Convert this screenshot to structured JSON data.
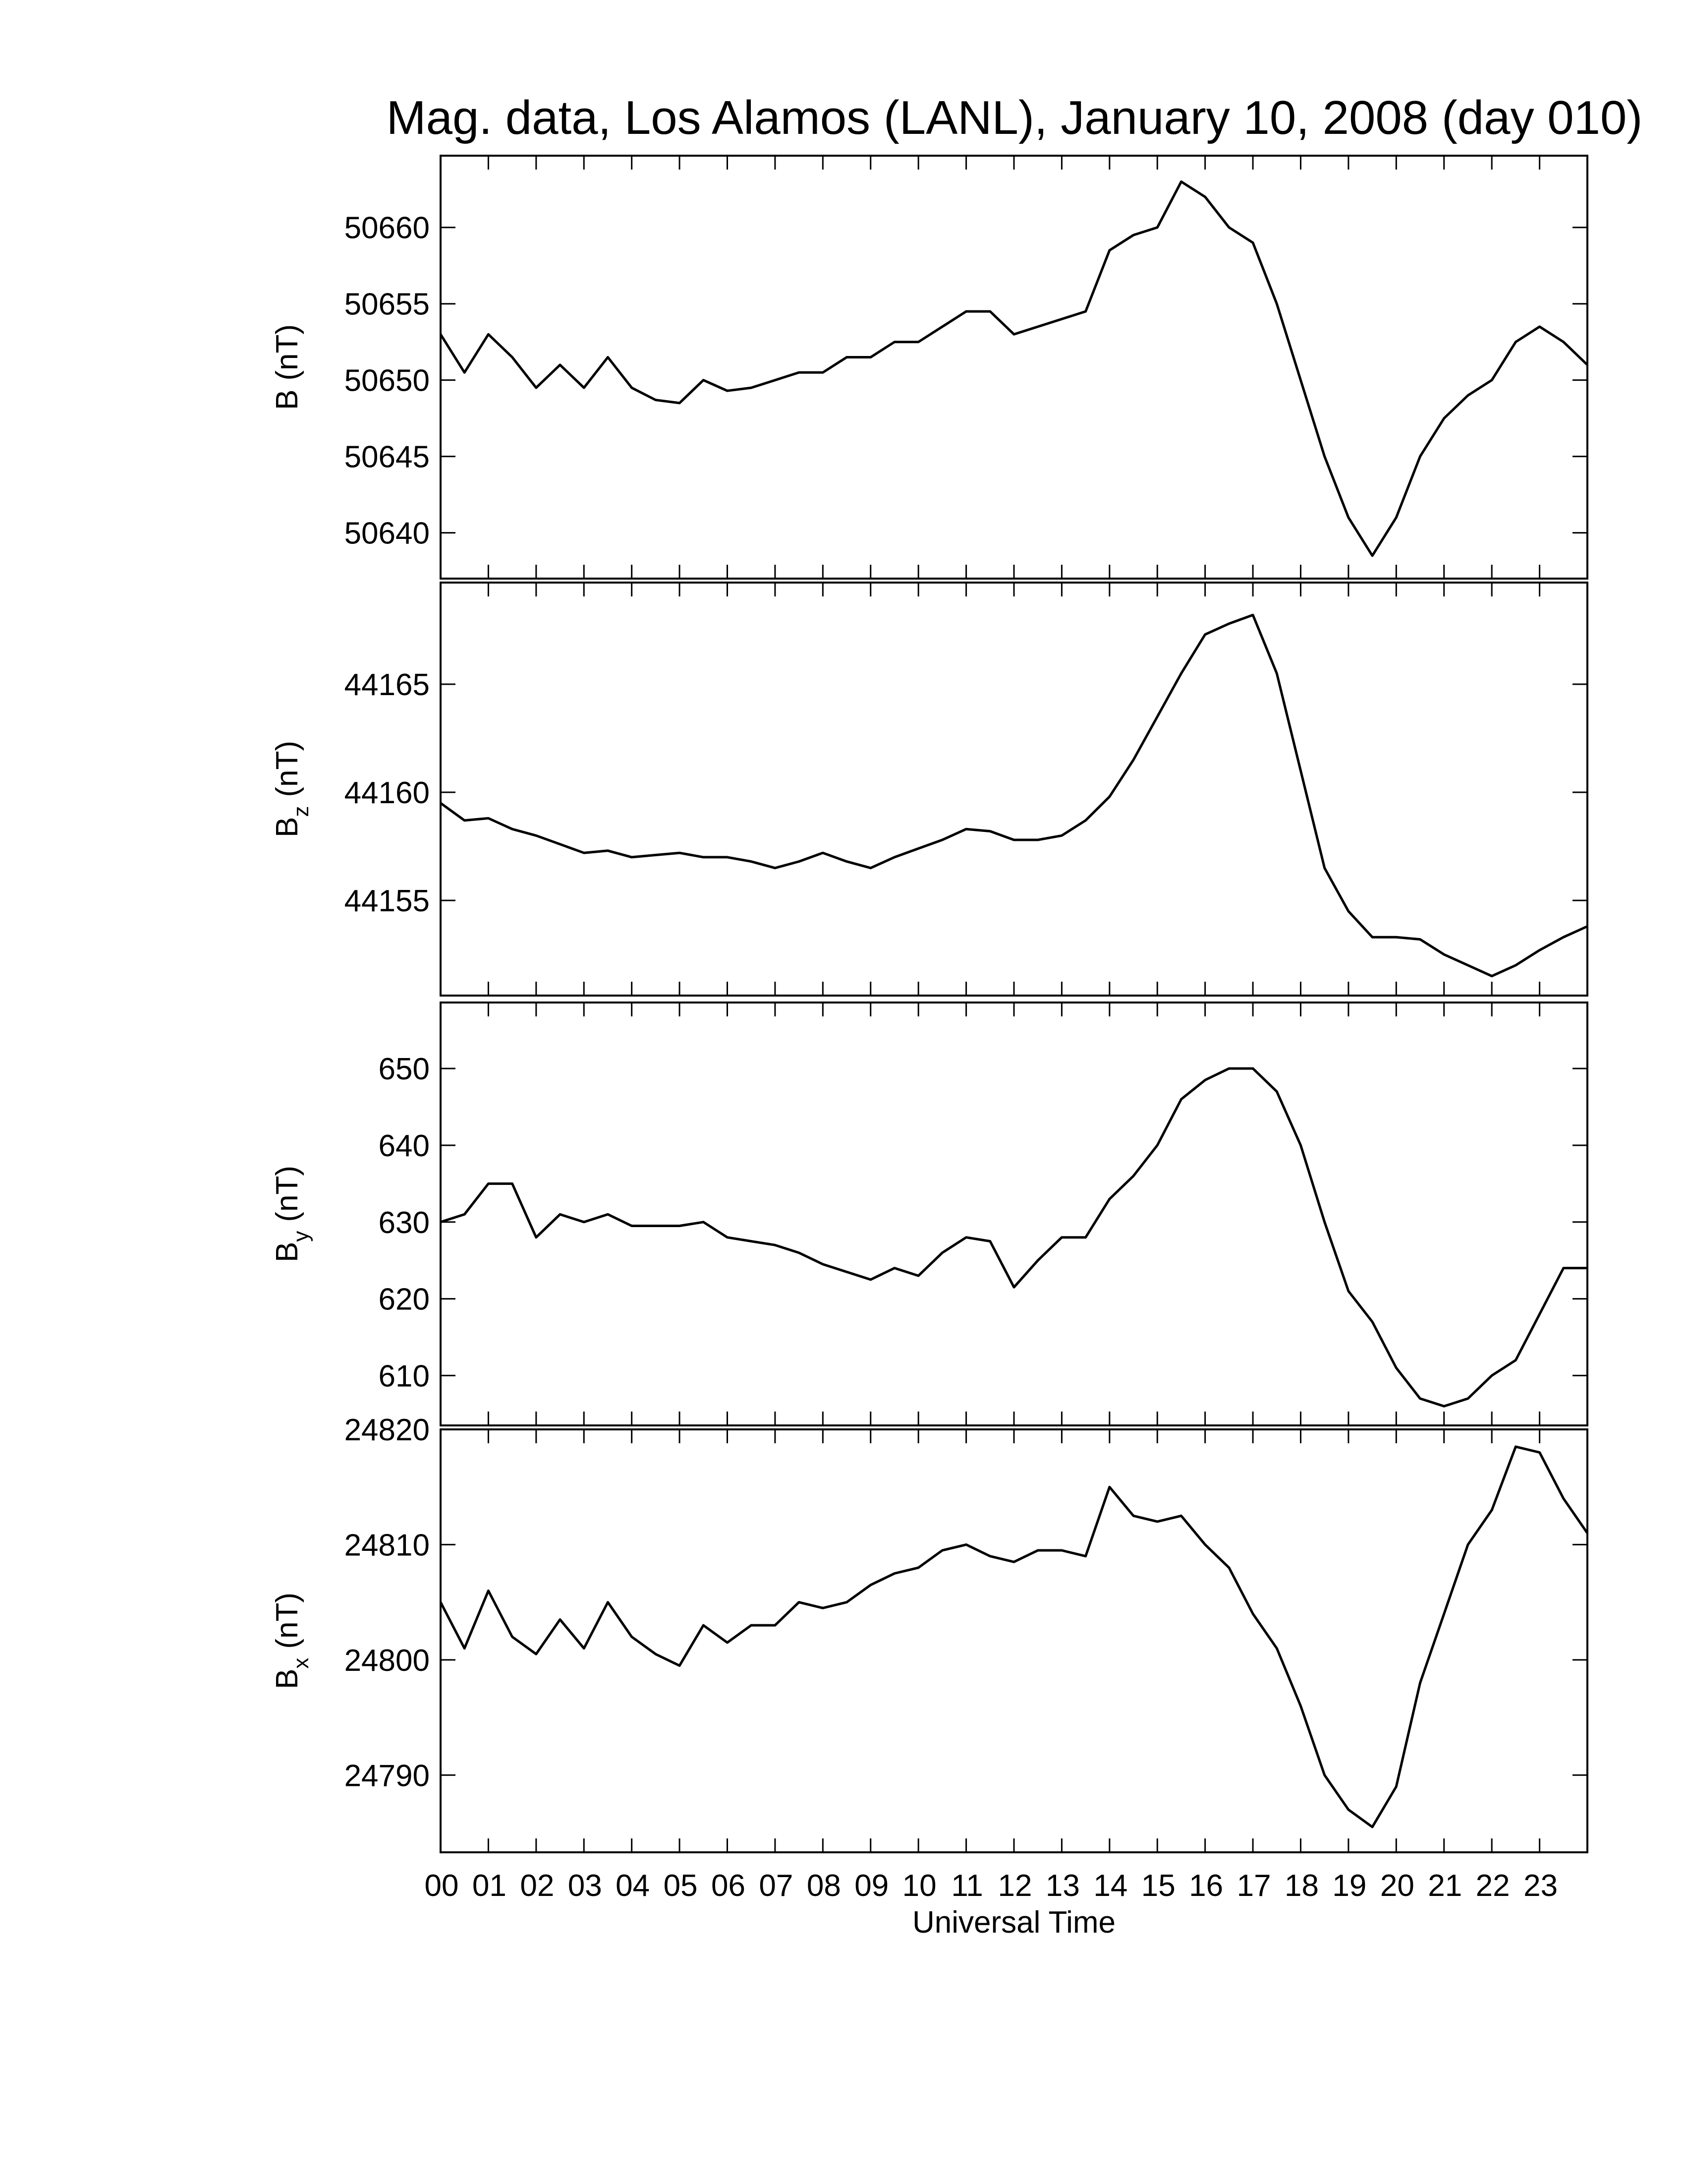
{
  "chart_data": [
    {
      "type": "line",
      "title": "Mag. data, Los Alamos (LANL), January 10, 2008 (day 010)",
      "ylabel": "B",
      "ylabel_unit": "(nT)",
      "xlim": [
        0,
        24
      ],
      "xticks": [
        0,
        1,
        2,
        3,
        4,
        5,
        6,
        7,
        8,
        9,
        10,
        11,
        12,
        13,
        14,
        15,
        16,
        17,
        18,
        19,
        20,
        21,
        22,
        23
      ],
      "ylim": [
        50637,
        50664.7
      ],
      "yticks": [
        50640,
        50645,
        50650,
        50655,
        50660
      ],
      "x": [
        0,
        0.5,
        1,
        1.5,
        2,
        2.5,
        3,
        3.5,
        4,
        4.5,
        5,
        5.5,
        6,
        6.5,
        7,
        7.5,
        8,
        8.5,
        9,
        9.5,
        10,
        10.5,
        11,
        11.5,
        12,
        12.5,
        13,
        13.5,
        14,
        14.5,
        15,
        15.5,
        16,
        16.5,
        17,
        17.5,
        18,
        18.5,
        19,
        19.5,
        20,
        20.5,
        21,
        21.5,
        22,
        22.5,
        23,
        23.5,
        24
      ],
      "series": [
        {
          "color": "#000000",
          "values": [
            50653,
            50650.5,
            50653,
            50651.5,
            50649.5,
            50651,
            50649.5,
            50651.5,
            50649.5,
            50648.7,
            50648.5,
            50650,
            50649.3,
            50649.5,
            50650,
            50650.5,
            50650.5,
            50651.5,
            50651.5,
            50652.5,
            50652.5,
            50653.5,
            50654.5,
            50654.5,
            50653,
            50653.5,
            50654,
            50654.5,
            50658.5,
            50659.5,
            50660,
            50663,
            50662,
            50660,
            50659,
            50655,
            50650,
            50645,
            50641,
            50638.5,
            50641,
            50645,
            50647.5,
            50649,
            50650,
            50652.5,
            50653.5,
            50652.5,
            50651
          ]
        }
      ]
    },
    {
      "type": "line",
      "ylabel": "B",
      "ylabel_subscript": "z",
      "ylabel_unit": "(nT)",
      "xlim": [
        0,
        24
      ],
      "xticks": [
        0,
        1,
        2,
        3,
        4,
        5,
        6,
        7,
        8,
        9,
        10,
        11,
        12,
        13,
        14,
        15,
        16,
        17,
        18,
        19,
        20,
        21,
        22,
        23
      ],
      "ylim": [
        44150.6,
        44169.7
      ],
      "yticks": [
        44155,
        44160,
        44165
      ],
      "x": [
        0,
        0.5,
        1,
        1.5,
        2,
        2.5,
        3,
        3.5,
        4,
        4.5,
        5,
        5.5,
        6,
        6.5,
        7,
        7.5,
        8,
        8.5,
        9,
        9.5,
        10,
        10.5,
        11,
        11.5,
        12,
        12.5,
        13,
        13.5,
        14,
        14.5,
        15,
        15.5,
        16,
        16.5,
        17,
        17.5,
        18,
        18.5,
        19,
        19.5,
        20,
        20.5,
        21,
        21.5,
        22,
        22.5,
        23,
        23.5,
        24
      ],
      "series": [
        {
          "color": "#000000",
          "values": [
            44159.5,
            44158.7,
            44158.8,
            44158.3,
            44158,
            44157.6,
            44157.2,
            44157.3,
            44157,
            44157.1,
            44157.2,
            44157,
            44157,
            44156.8,
            44156.5,
            44156.8,
            44157.2,
            44156.8,
            44156.5,
            44157,
            44157.4,
            44157.8,
            44158.3,
            44158.2,
            44157.8,
            44157.8,
            44158,
            44158.7,
            44159.8,
            44161.5,
            44163.5,
            44165.5,
            44167.3,
            44167.8,
            44168.2,
            44165.5,
            44161,
            44156.5,
            44154.5,
            44153.3,
            44153.3,
            44153.2,
            44152.5,
            44152,
            44151.5,
            44152,
            44152.7,
            44153.3,
            44153.8
          ]
        }
      ]
    },
    {
      "type": "line",
      "ylabel": "B",
      "ylabel_subscript": "y",
      "ylabel_unit": "(nT)",
      "xlim": [
        0,
        24
      ],
      "xticks": [
        0,
        1,
        2,
        3,
        4,
        5,
        6,
        7,
        8,
        9,
        10,
        11,
        12,
        13,
        14,
        15,
        16,
        17,
        18,
        19,
        20,
        21,
        22,
        23
      ],
      "ylim": [
        603.5,
        658.6
      ],
      "yticks": [
        610,
        620,
        630,
        640,
        650
      ],
      "x": [
        0,
        0.5,
        1,
        1.5,
        2,
        2.5,
        3,
        3.5,
        4,
        4.5,
        5,
        5.5,
        6,
        6.5,
        7,
        7.5,
        8,
        8.5,
        9,
        9.5,
        10,
        10.5,
        11,
        11.5,
        12,
        12.5,
        13,
        13.5,
        14,
        14.5,
        15,
        15.5,
        16,
        16.5,
        17,
        17.5,
        18,
        18.5,
        19,
        19.5,
        20,
        20.5,
        21,
        21.5,
        22,
        22.5,
        23,
        23.5,
        24
      ],
      "series": [
        {
          "color": "#000000",
          "values": [
            630,
            631,
            635,
            635,
            628,
            631,
            630,
            631,
            629.5,
            629.5,
            629.5,
            630,
            628,
            627.5,
            627,
            626,
            624.5,
            623.5,
            622.5,
            624,
            623,
            626,
            628,
            627.5,
            621.5,
            625,
            628,
            628,
            633,
            636,
            640,
            646,
            648.5,
            650,
            650,
            647,
            640,
            630,
            621,
            617,
            611,
            607,
            606,
            607,
            610,
            612,
            618,
            624,
            624
          ]
        }
      ]
    },
    {
      "type": "line",
      "ylabel": "B",
      "ylabel_subscript": "x",
      "ylabel_unit": "(nT)",
      "xlabel": "Universal Time",
      "xlim": [
        0,
        24
      ],
      "xticks": [
        {
          "value": 0,
          "label": "00"
        },
        {
          "value": 1,
          "label": "01"
        },
        {
          "value": 2,
          "label": "02"
        },
        {
          "value": 3,
          "label": "03"
        },
        {
          "value": 4,
          "label": "04"
        },
        {
          "value": 5,
          "label": "05"
        },
        {
          "value": 6,
          "label": "06"
        },
        {
          "value": 7,
          "label": "07"
        },
        {
          "value": 8,
          "label": "08"
        },
        {
          "value": 9,
          "label": "09"
        },
        10,
        11,
        12,
        13,
        14,
        15,
        16,
        17,
        18,
        19,
        20,
        21,
        22,
        23
      ],
      "ylim": [
        24783.3,
        24820
      ],
      "yticks": [
        24790,
        24800,
        24810,
        24820
      ],
      "x": [
        0,
        0.5,
        1,
        1.5,
        2,
        2.5,
        3,
        3.5,
        4,
        4.5,
        5,
        5.5,
        6,
        6.5,
        7,
        7.5,
        8,
        8.5,
        9,
        9.5,
        10,
        10.5,
        11,
        11.5,
        12,
        12.5,
        13,
        13.5,
        14,
        14.5,
        15,
        15.5,
        16,
        16.5,
        17,
        17.5,
        18,
        18.5,
        19,
        19.5,
        20,
        20.5,
        21,
        21.5,
        22,
        22.5,
        23,
        23.5,
        24
      ],
      "series": [
        {
          "color": "#000000",
          "values": [
            24805,
            24801,
            24806,
            24802,
            24800.5,
            24803.5,
            24801,
            24805,
            24802,
            24800.5,
            24799.5,
            24803,
            24801.5,
            24803,
            24803,
            24805,
            24804.5,
            24805,
            24806.5,
            24807.5,
            24808,
            24809.5,
            24810,
            24809,
            24808.5,
            24809.5,
            24809.5,
            24809,
            24815,
            24812.5,
            24812,
            24812.5,
            24810,
            24808,
            24804,
            24801,
            24796,
            24790,
            24787,
            24785.5,
            24789,
            24798,
            24804,
            24810,
            24813,
            24818.5,
            24818,
            24814,
            24811
          ]
        }
      ]
    }
  ]
}
